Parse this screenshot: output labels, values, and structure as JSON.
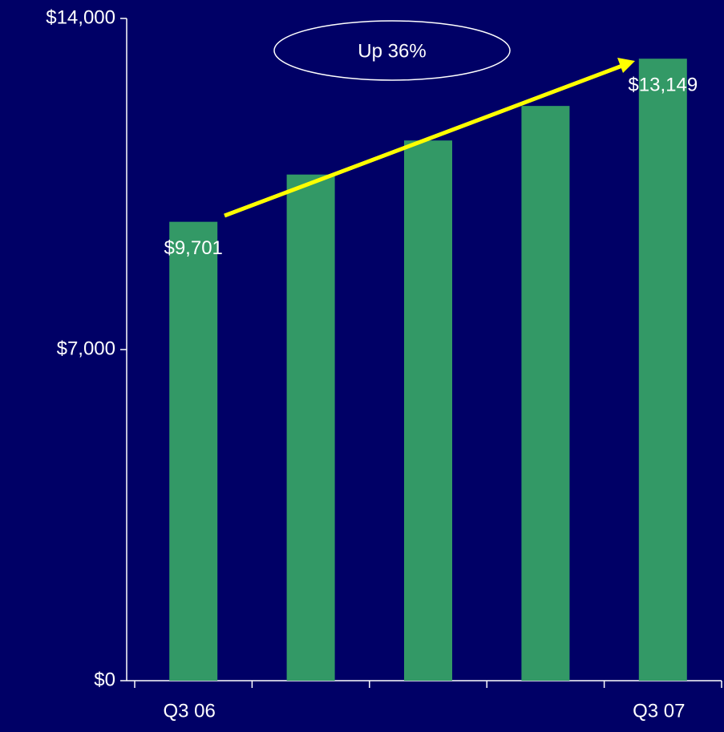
{
  "chart_data": {
    "type": "bar",
    "categories": [
      "Q3 06",
      null,
      null,
      null,
      "Q3 07"
    ],
    "values": [
      9701,
      10700,
      11420,
      12150,
      13149
    ],
    "value_labels": [
      "$9,701",
      null,
      null,
      null,
      "$13,149"
    ],
    "color": "#339966",
    "ylim": [
      0,
      14000
    ],
    "yticks": [
      {
        "value": 0,
        "label": "$0"
      },
      {
        "value": 7000,
        "label": "$7,000"
      },
      {
        "value": 14000,
        "label": "$14,000"
      }
    ],
    "annotation": "Up 36%"
  }
}
